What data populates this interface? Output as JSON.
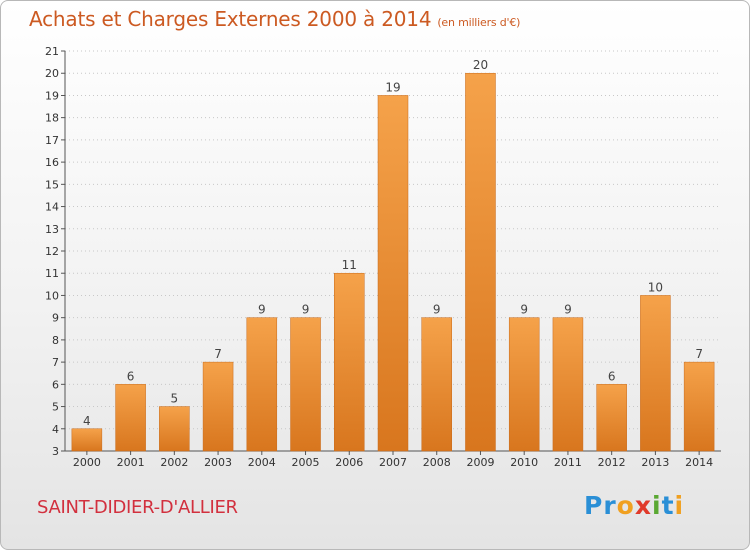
{
  "header": {
    "title": "Achats et Charges Externes 2000 à 2014",
    "subtitle": "(en milliers d'€)"
  },
  "footer": {
    "city": "SAINT-DIDIER-D'ALLIER",
    "logo": [
      "P",
      "r",
      "o",
      "x",
      "i",
      "t",
      "i"
    ],
    "logo_colors": [
      "#2a8fd6",
      "#2a8fd6",
      "#f0a020",
      "#e03a2a",
      "#5aa832",
      "#2a8fd6",
      "#f0a020"
    ]
  },
  "colors": {
    "bar_light": "#f5a24a",
    "bar_dark": "#d8761e",
    "grid": "#c8c8c8",
    "axis": "#555555"
  },
  "chart_data": {
    "type": "bar",
    "title": "Achats et Charges Externes 2000 à 2014",
    "subtitle": "(en milliers d'€)",
    "categories": [
      "2000",
      "2001",
      "2002",
      "2003",
      "2004",
      "2005",
      "2006",
      "2007",
      "2008",
      "2009",
      "2010",
      "2011",
      "2012",
      "2013",
      "2014"
    ],
    "values": [
      4,
      6,
      5,
      7,
      9,
      9,
      11,
      19,
      9,
      20,
      9,
      9,
      6,
      10,
      7
    ],
    "ylim": [
      3,
      21
    ],
    "yticks": [
      3,
      4,
      5,
      6,
      7,
      8,
      9,
      10,
      11,
      12,
      13,
      14,
      15,
      16,
      17,
      18,
      19,
      20,
      21
    ],
    "grid": true,
    "xlabel": "",
    "ylabel": ""
  }
}
